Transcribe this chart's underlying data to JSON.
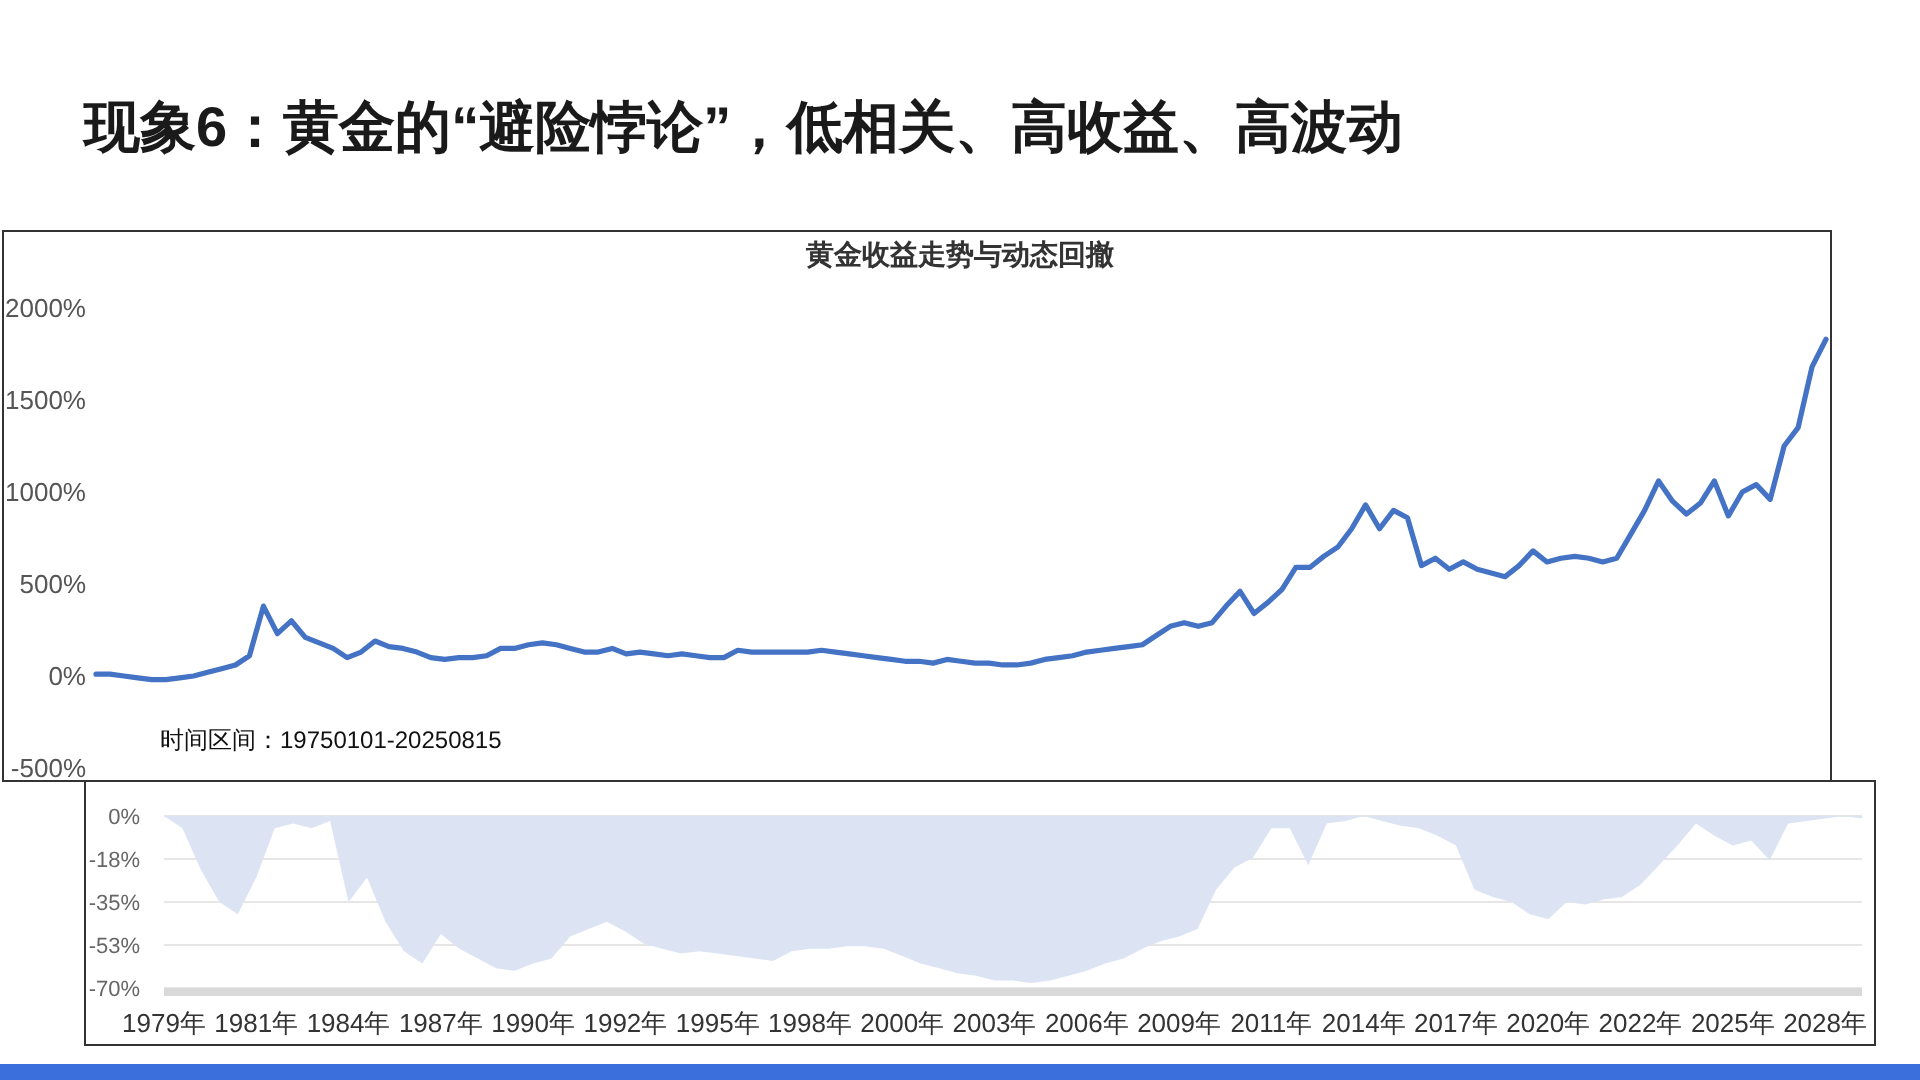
{
  "chart_data": [
    {
      "type": "line",
      "title": "现象6：黄金的“避险悖论”，低相关、高收益、高波动",
      "subtitle": "黄金收益走势与动态回撤",
      "categories": [
        null,
        null,
        null,
        null,
        null,
        null,
        null,
        null,
        null,
        null,
        null,
        null,
        null,
        null,
        null,
        null,
        null,
        null,
        null,
        null,
        null,
        null,
        null,
        null,
        null,
        null,
        null,
        null,
        null,
        null,
        null,
        null,
        null,
        null,
        null,
        null,
        null,
        null,
        null,
        null,
        null,
        null,
        null,
        null,
        null,
        null,
        null,
        null,
        null,
        null,
        null,
        null,
        null,
        null,
        null,
        null,
        null,
        null,
        null,
        null,
        null,
        null,
        null,
        null,
        null,
        null,
        null,
        null,
        null,
        null,
        null,
        null,
        null,
        null,
        null,
        null,
        null,
        null,
        null,
        null,
        null,
        null,
        null,
        null,
        null,
        null,
        null,
        null,
        null,
        null,
        null,
        null,
        null,
        null,
        null,
        null,
        null,
        null,
        null,
        null,
        null,
        null,
        null,
        null,
        null,
        null,
        null,
        null,
        null,
        null,
        null,
        null,
        null,
        null,
        null,
        null,
        null,
        null,
        null,
        null,
        null,
        null,
        null,
        null,
        null
      ],
      "series": [
        {
          "color": "#4472c4",
          "values": [
            10,
            10,
            0,
            -10,
            -20,
            -20,
            -10,
            0,
            20,
            40,
            60,
            110,
            380,
            230,
            300,
            210,
            180,
            150,
            100,
            130,
            190,
            160,
            150,
            130,
            100,
            90,
            100,
            100,
            110,
            150,
            150,
            170,
            180,
            170,
            150,
            130,
            130,
            150,
            120,
            130,
            120,
            110,
            120,
            110,
            100,
            100,
            140,
            130,
            130,
            130,
            130,
            130,
            140,
            130,
            120,
            110,
            100,
            90,
            80,
            80,
            70,
            90,
            80,
            70,
            70,
            60,
            60,
            70,
            90,
            100,
            110,
            130,
            140,
            150,
            160,
            170,
            220,
            270,
            290,
            270,
            290,
            380,
            460,
            340,
            400,
            470,
            590,
            590,
            650,
            700,
            800,
            930,
            800,
            900,
            860,
            600,
            640,
            580,
            620,
            580,
            560,
            540,
            600,
            680,
            620,
            640,
            650,
            640,
            620,
            640,
            770,
            900,
            1060,
            950,
            880,
            940,
            1060,
            870,
            1000,
            1040,
            960,
            1250,
            1350,
            1680,
            1830
          ]
        }
      ],
      "ylim": [
        -500,
        2000
      ],
      "yticks": [
        {
          "value": -500,
          "label": "-500%"
        },
        {
          "value": 0,
          "label": "0%"
        },
        {
          "value": 500,
          "label": "500%"
        },
        {
          "value": 1000,
          "label": "1000%"
        },
        {
          "value": 1500,
          "label": "1500%"
        },
        {
          "value": 2000,
          "label": "2000%"
        }
      ],
      "tick_labels": "y",
      "annotations": [
        "时间区间：19750101-20250815"
      ]
    },
    {
      "type": "area",
      "categories": [
        "1979年",
        null,
        null,
        null,
        null,
        "1981年",
        null,
        null,
        null,
        null,
        "1984年",
        null,
        null,
        null,
        null,
        "1987年",
        null,
        null,
        null,
        null,
        "1990年",
        null,
        null,
        null,
        null,
        "1992年",
        null,
        null,
        null,
        null,
        "1995年",
        null,
        null,
        null,
        null,
        "1998年",
        null,
        null,
        null,
        null,
        "2000年",
        null,
        null,
        null,
        null,
        "2003年",
        null,
        null,
        null,
        null,
        "2006年",
        null,
        null,
        null,
        null,
        "2009年",
        null,
        null,
        null,
        null,
        "2011年",
        null,
        null,
        null,
        null,
        "2014年",
        null,
        null,
        null,
        null,
        "2017年",
        null,
        null,
        null,
        null,
        "2020年",
        null,
        null,
        null,
        null,
        "2022年",
        null,
        null,
        null,
        null,
        "2025年",
        null,
        null,
        null,
        null,
        "2028年",
        null,
        null
      ],
      "series": [
        {
          "color": "#dce3f3",
          "values": [
            0,
            -5,
            -22,
            -35,
            -40,
            -25,
            -5,
            -3,
            -5,
            -2,
            -35,
            -25,
            -43,
            -55,
            -60,
            -48,
            -54,
            -58,
            -62,
            -63,
            -60,
            -58,
            -49,
            -46,
            -43,
            -47,
            -52,
            -54,
            -56,
            -55,
            -56,
            -57,
            -58,
            -59,
            -55,
            -54,
            -54,
            -53,
            -53,
            -54,
            -57,
            -60,
            -62,
            -64,
            -65,
            -67,
            -67,
            -68,
            -67,
            -65,
            -63,
            -60,
            -58,
            -54,
            -51,
            -49,
            -46,
            -30,
            -21,
            -17,
            -5,
            -5,
            -20,
            -3,
            -2,
            0,
            -2,
            -4,
            -5,
            -8,
            -12,
            -30,
            -33,
            -35,
            -40,
            -42,
            -35,
            -36,
            -34,
            -33,
            -28,
            -20,
            -12,
            -3,
            -8,
            -12,
            -10,
            -18,
            -3,
            -2,
            -1,
            0,
            -1
          ]
        }
      ],
      "ylim": [
        -70,
        0
      ],
      "yticks": [
        {
          "value": 0,
          "label": "0%"
        },
        {
          "value": -17.5,
          "label": "-18%"
        },
        {
          "value": -35,
          "label": "-35%"
        },
        {
          "value": -52.5,
          "label": "-53%"
        },
        {
          "value": -70,
          "label": "-70%"
        }
      ],
      "grid": "y"
    }
  ]
}
